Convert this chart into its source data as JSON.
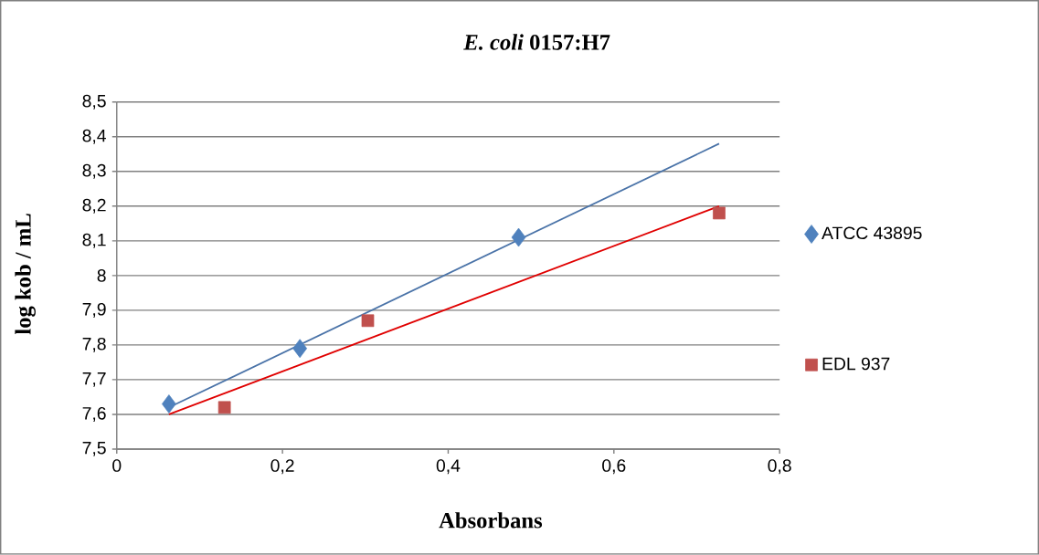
{
  "chart_data": {
    "type": "scatter",
    "title": "*E. coli* 0157:H7",
    "xlabel": "Absorbans",
    "ylabel": "log kob / mL",
    "series": [
      {
        "name": "ATCC 43895",
        "marker": "diamond",
        "color": "#4f81bd",
        "x": [
          0.063,
          0.221,
          0.485
        ],
        "values": [
          7.63,
          7.79,
          8.11
        ]
      },
      {
        "name": "EDL 937",
        "marker": "square",
        "color": "#c0504d",
        "x": [
          0.13,
          0.303,
          0.727
        ],
        "values": [
          7.62,
          7.87,
          8.18
        ]
      },
      {
        "type": "line",
        "marker": "none",
        "color": "#4a73a8",
        "x": [
          0.063,
          0.727
        ],
        "values": [
          7.62,
          8.38
        ]
      },
      {
        "type": "line",
        "marker": "none",
        "color": "#e00000",
        "x": [
          0.063,
          0.727
        ],
        "values": [
          7.6,
          8.2
        ]
      }
    ],
    "xlim": [
      0,
      0.8
    ],
    "ylim": [
      7.5,
      8.5
    ],
    "xticks": [
      0,
      {
        "value": 0.2,
        "label": "0,2"
      },
      {
        "value": 0.4,
        "label": "0,4"
      },
      {
        "value": 0.6,
        "label": "0,6"
      },
      {
        "value": 0.8,
        "label": "0,8"
      }
    ],
    "yticks": [
      {
        "value": 7.5,
        "label": "7,5"
      },
      {
        "value": 7.6,
        "label": "7,6"
      },
      {
        "value": 7.7,
        "label": "7,7"
      },
      {
        "value": 7.8,
        "label": "7,8"
      },
      {
        "value": 7.9,
        "label": "7,9"
      },
      8,
      {
        "value": 8.1,
        "label": "8,1"
      },
      {
        "value": 8.2,
        "label": "8,2"
      },
      {
        "value": 8.3,
        "label": "8,3"
      },
      {
        "value": 8.4,
        "label": "8,4"
      },
      {
        "value": 8.5,
        "label": "8,5"
      }
    ],
    "grid": "y",
    "legend": "right"
  }
}
